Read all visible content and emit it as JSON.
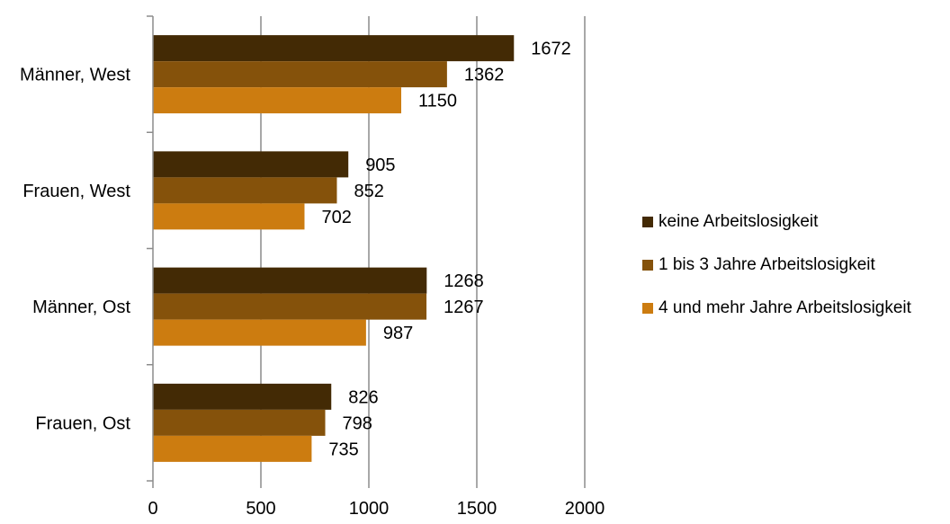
{
  "chart_data": {
    "type": "bar",
    "orientation": "horizontal",
    "categories": [
      "Männer, West",
      "Frauen, West",
      "Männer, Ost",
      "Frauen, Ost"
    ],
    "series": [
      {
        "name": "keine Arbeitslosigkeit",
        "color": "#432a05",
        "values": [
          1672,
          905,
          1268,
          826
        ]
      },
      {
        "name": "1 bis 3 Jahre Arbeitslosigkeit",
        "color": "#85520b",
        "values": [
          1362,
          852,
          1267,
          798
        ]
      },
      {
        "name": "4 und mehr Jahre Arbeitslosigkeit",
        "color": "#cc7c10",
        "values": [
          1150,
          702,
          987,
          735
        ]
      }
    ],
    "xlim": [
      0,
      2000
    ],
    "xticks": [
      "0",
      "500",
      "1000",
      "1500",
      "2000"
    ],
    "grid": true,
    "legend_position": "right",
    "data_labels": true
  }
}
